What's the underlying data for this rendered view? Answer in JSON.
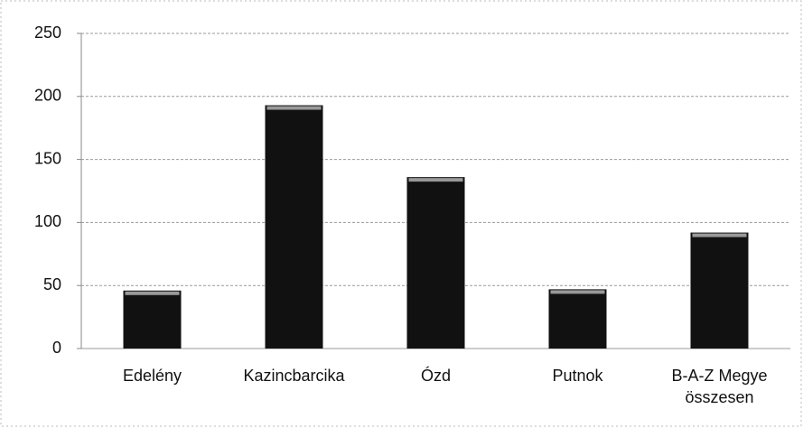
{
  "chart_data": {
    "type": "bar",
    "categories": [
      "Edelény",
      "Kazincbarcika",
      "Ózd",
      "Putnok",
      "B-A-Z Megye összesen"
    ],
    "values": [
      46,
      193,
      136,
      47,
      92
    ],
    "color": "#111111",
    "ylim": [
      0,
      250
    ],
    "yticks": [
      0,
      50,
      100,
      150,
      200,
      250
    ],
    "grid": true
  }
}
